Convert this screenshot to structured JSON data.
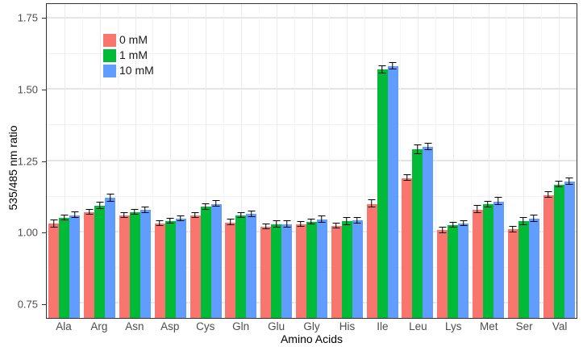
{
  "axes": {
    "y_label": "535/485 nm ratio",
    "x_label": "Amino Acids",
    "y_tick_labels": [
      "0.75",
      "1.00",
      "1.25",
      "1.50",
      "1.75"
    ]
  },
  "legend": {
    "items": [
      {
        "label": "0 mM",
        "color": "#F8766D"
      },
      {
        "label": "1 mM",
        "color": "#00BA38"
      },
      {
        "label": "10 mM",
        "color": "#619CFF"
      }
    ]
  },
  "chart_data": {
    "type": "bar",
    "title": "",
    "xlabel": "Amino Acids",
    "ylabel": "535/485 nm ratio",
    "ylim": [
      0.7,
      1.8
    ],
    "y_ticks": [
      0.75,
      1.0,
      1.25,
      1.5,
      1.75
    ],
    "grid_major": [
      0.75,
      1.0,
      1.25,
      1.5,
      1.75
    ],
    "grid_minor": [
      0.875,
      1.125,
      1.375,
      1.625
    ],
    "grid": true,
    "legend_position": "inside-top-left",
    "categories": [
      "Ala",
      "Arg",
      "Asn",
      "Asp",
      "Cys",
      "Gln",
      "Glu",
      "Gly",
      "His",
      "Ile",
      "Leu",
      "Lys",
      "Met",
      "Ser",
      "Val"
    ],
    "series": [
      {
        "name": "0 mM",
        "color": "#F8766D",
        "values": [
          1.03,
          1.07,
          1.06,
          1.03,
          1.06,
          1.035,
          1.02,
          1.028,
          1.022,
          1.1,
          1.19,
          1.008,
          1.08,
          1.01,
          1.13
        ],
        "errors": [
          0.012,
          0.008,
          0.008,
          0.008,
          0.008,
          0.01,
          0.008,
          0.008,
          0.008,
          0.012,
          0.01,
          0.01,
          0.012,
          0.01,
          0.01
        ]
      },
      {
        "name": "1 mM",
        "color": "#00BA38",
        "values": [
          1.05,
          1.093,
          1.07,
          1.04,
          1.09,
          1.06,
          1.028,
          1.036,
          1.038,
          1.57,
          1.29,
          1.025,
          1.098,
          1.038,
          1.168
        ],
        "errors": [
          0.008,
          0.012,
          0.008,
          0.008,
          0.01,
          0.008,
          0.01,
          0.008,
          0.012,
          0.012,
          0.015,
          0.008,
          0.01,
          0.012,
          0.01
        ]
      },
      {
        "name": "10 mM",
        "color": "#619CFF",
        "values": [
          1.06,
          1.12,
          1.078,
          1.048,
          1.1,
          1.064,
          1.028,
          1.045,
          1.042,
          1.583,
          1.3,
          1.03,
          1.108,
          1.048,
          1.178
        ],
        "errors": [
          0.01,
          0.012,
          0.01,
          0.008,
          0.01,
          0.01,
          0.01,
          0.012,
          0.01,
          0.012,
          0.012,
          0.008,
          0.012,
          0.012,
          0.012
        ]
      }
    ]
  }
}
